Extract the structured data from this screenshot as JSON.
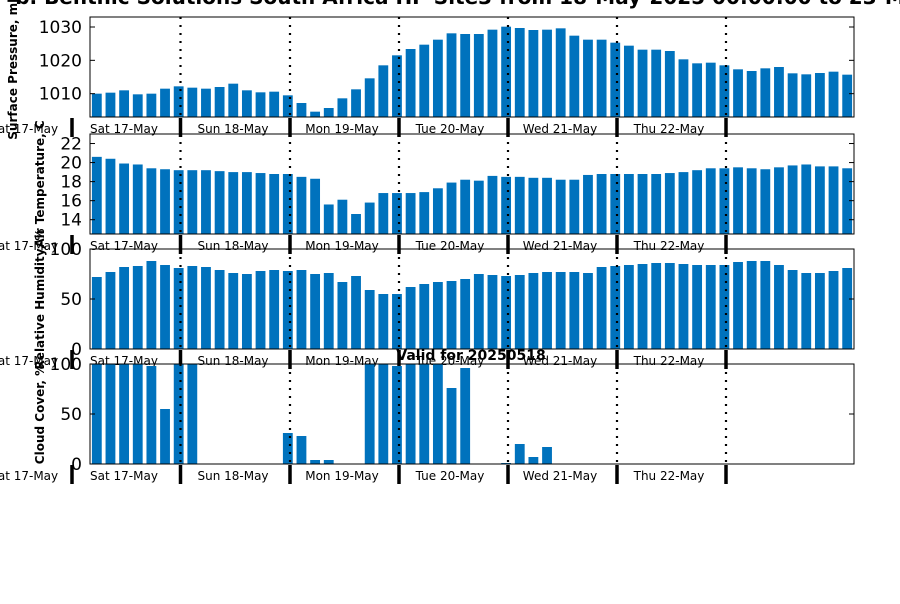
{
  "page": {
    "title": "b. Benthic Solutions South Africa HP Site3 from 18-May-2025 00:00:00 to 23-M",
    "subtitle": "Valid for 20250518"
  },
  "day_labels": [
    "at 17-May",
    "Sat 17-May",
    "Sun 18-May",
    "Mon 19-May",
    "Tue 20-May",
    "Wed 21-May",
    "Thu 22-May"
  ],
  "colors": {
    "bar": "#0072bd",
    "axis": "#000000",
    "background": "#ffffff"
  },
  "chart_data": [
    {
      "type": "bar",
      "ylabel": "Surface Pressure, mb",
      "ylim": [
        1003,
        1033
      ],
      "yticks": [
        1010,
        1020,
        1030
      ],
      "grid": false,
      "values": [
        1010,
        1010.3,
        1011,
        1009.8,
        1010,
        1011.5,
        1012.2,
        1011.8,
        1011.5,
        1012,
        1013,
        1011,
        1010.4,
        1010.6,
        1009.5,
        1007.2,
        1004.6,
        1005.7,
        1008.6,
        1011.3,
        1014.6,
        1018.5,
        1021.5,
        1023.4,
        1024.7,
        1026.2,
        1028.1,
        1027.9,
        1027.9,
        1029.2,
        1030.1,
        1029.7,
        1029.1,
        1029.2,
        1029.6,
        1027.4,
        1026.2,
        1026.2,
        1025.3,
        1024.4,
        1023.2,
        1023.2,
        1022.8,
        1020.3,
        1019.1,
        1019.3,
        1018.5,
        1017.3,
        1016.8,
        1017.6,
        1018,
        1016.1,
        1015.8,
        1016.2,
        1016.6,
        1015.7
      ]
    },
    {
      "type": "bar",
      "ylabel": "Air Temperature, C",
      "ylim": [
        12.5,
        23
      ],
      "yticks": [
        14,
        16,
        18,
        20,
        22
      ],
      "grid": false,
      "values": [
        20.6,
        20.4,
        19.9,
        19.8,
        19.4,
        19.3,
        19.2,
        19.2,
        19.2,
        19.1,
        19,
        19,
        18.9,
        18.8,
        18.8,
        18.5,
        18.3,
        15.6,
        16.1,
        14.6,
        15.8,
        16.8,
        16.8,
        16.8,
        16.9,
        17.3,
        17.9,
        18.2,
        18.1,
        18.6,
        18.5,
        18.5,
        18.4,
        18.4,
        18.2,
        18.2,
        18.7,
        18.8,
        18.8,
        18.8,
        18.8,
        18.8,
        18.9,
        19,
        19.2,
        19.4,
        19.4,
        19.5,
        19.4,
        19.3,
        19.5,
        19.7,
        19.8,
        19.6,
        19.6,
        19.4
      ]
    },
    {
      "type": "bar",
      "ylabel": "Relative Humidity, %",
      "ylim": [
        0,
        100
      ],
      "yticks": [
        0,
        50,
        100
      ],
      "grid": false,
      "values": [
        72,
        77,
        82,
        83,
        88,
        84,
        81,
        83,
        82,
        79,
        76,
        75,
        78,
        79,
        78,
        79,
        75,
        76,
        67,
        73,
        59,
        55,
        55,
        62,
        65,
        67,
        68,
        70,
        75,
        74,
        73,
        74,
        76,
        77,
        77,
        77,
        76,
        82,
        83,
        84,
        85,
        86,
        86,
        85,
        84,
        84,
        84,
        87,
        88,
        88,
        84,
        79,
        76,
        76,
        78,
        81
      ]
    },
    {
      "type": "bar",
      "ylabel": "Cloud Cover, %",
      "ylim": [
        0,
        100
      ],
      "yticks": [
        0,
        50,
        100
      ],
      "grid": false,
      "values": [
        100,
        100,
        100,
        100,
        98,
        55,
        100,
        100,
        0,
        0,
        0,
        0,
        0,
        0,
        31,
        28,
        4,
        4,
        0,
        0,
        100,
        100,
        98,
        100,
        100,
        100,
        76,
        96,
        0,
        0,
        1,
        20,
        7,
        17,
        0,
        0,
        0,
        0,
        0,
        0,
        0,
        0,
        0,
        0,
        0,
        0,
        0,
        0,
        0,
        0,
        0,
        0,
        0,
        0,
        0,
        0
      ]
    }
  ]
}
